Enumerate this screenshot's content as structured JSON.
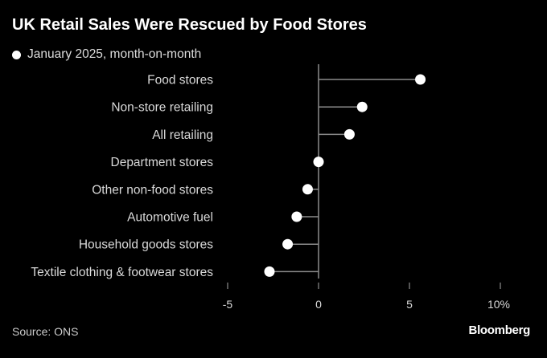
{
  "header": {
    "title": "UK Retail Sales Were Rescued by Food Stores",
    "legend_label": "January 2025, month-on-month"
  },
  "footer": {
    "source": "Source: ONS",
    "brand": "Bloomberg"
  },
  "colors": {
    "background": "#000000",
    "dot": "#ffffff",
    "stem": "#8c8c8c"
  },
  "chart_data": {
    "type": "scatter",
    "subtype": "lollipop-horizontal",
    "title": "UK Retail Sales Were Rescued by Food Stores",
    "categories": [
      "Food stores",
      "Non-store retailing",
      "All retailing",
      "Department stores",
      "Other non-food stores",
      "Automotive fuel",
      "Household goods stores",
      "Textile clothing & footwear stores"
    ],
    "series": [
      {
        "name": "January 2025, month-on-month",
        "values": [
          5.6,
          2.4,
          1.7,
          0.0,
          -0.6,
          -1.2,
          -1.7,
          -2.7
        ]
      }
    ],
    "xlim": [
      -5,
      10
    ],
    "xticks": [
      "-5",
      "0",
      "5",
      "10%"
    ],
    "xtick_values": [
      -5,
      0,
      5,
      10
    ],
    "grid": false,
    "legend_position": "top-left"
  }
}
